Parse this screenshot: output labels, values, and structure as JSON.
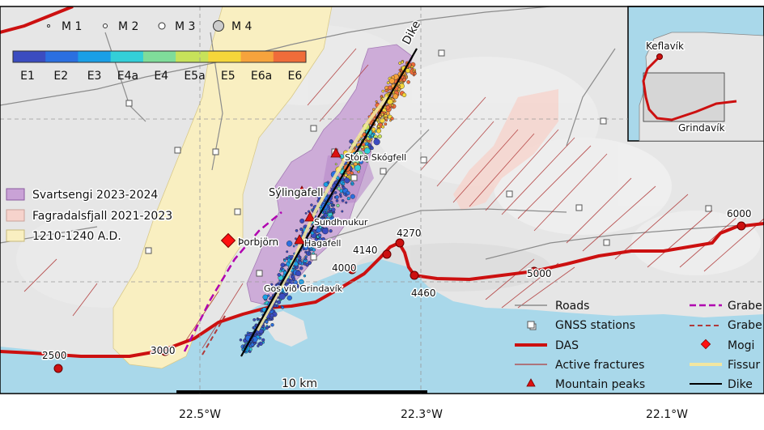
{
  "magnitude_legend": [
    "M 1",
    "M 2",
    "M 3",
    "M 4"
  ],
  "colorbar": {
    "labels": [
      "E1",
      "E2",
      "E3",
      "E4a",
      "E4",
      "E5a",
      "E5",
      "E6a",
      "E6"
    ],
    "colors": [
      "#3b4cc0",
      "#2b6fe0",
      "#1a9fe6",
      "#33cfd8",
      "#7fdc9a",
      "#c7e25a",
      "#f5d63a",
      "#f6a33c",
      "#ef6c3a"
    ]
  },
  "area_legend": [
    {
      "label": "Svartsengi 2023-2024",
      "color": "#c9a2d6"
    },
    {
      "label": "Fagradalsfjall 2021-2023",
      "color": "#f6d3cc"
    },
    {
      "label": "1210-1240 A.D.",
      "color": "#f9efc1"
    }
  ],
  "place_labels": {
    "dike": "Dike",
    "stora": "Stóra Skógfell",
    "sylingafell": "Sýlingafell",
    "sundhnukur": "Sundhnukur",
    "thorbjorn": "Þorbjörn",
    "hagafell": "Hagafell",
    "gos": "Gos við Grindavík"
  },
  "das_markers": [
    "2500",
    "3000",
    "4000",
    "4140",
    "4270",
    "4460",
    "5000",
    "6000"
  ],
  "scale_bar": "10 km",
  "lon_ticks": [
    "22.5°W",
    "22.3°W",
    "22.1°W"
  ],
  "inset_labels": {
    "keflavik": "Keflavík",
    "grindavik": "Grindavík"
  },
  "feature_legend": {
    "col1": [
      "Roads",
      "GNSS stations",
      "DAS",
      "Active fractures",
      "Mountain peaks"
    ],
    "col2": [
      "Grabe",
      "Grabe",
      "Mogi",
      "Fissur",
      "Dike"
    ]
  },
  "colors": {
    "sea": "#a9d8ea",
    "land": "#e6e6e6",
    "das": "#cc1010",
    "fracture": "#b03a3a",
    "graben": "#b000b0",
    "mogi": "#ff1010"
  }
}
